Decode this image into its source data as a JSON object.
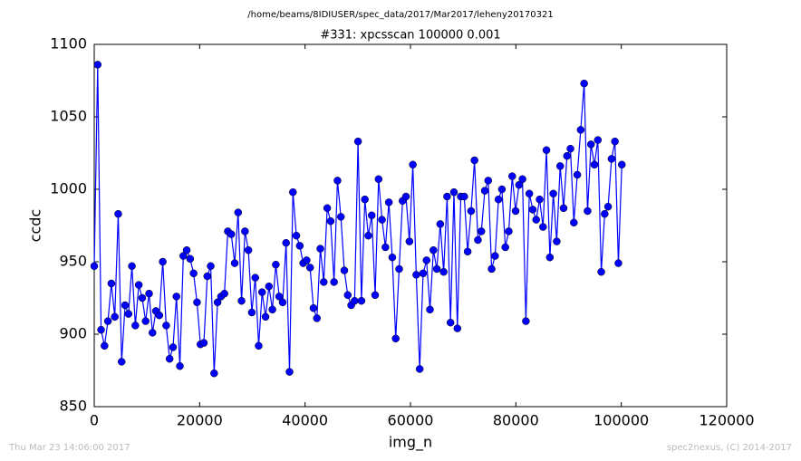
{
  "chart_data": {
    "type": "line",
    "suptitle": "/home/beams/8IDIUSER/spec_data/2017/Mar2017/leheny20170321",
    "title": "#331: xpcsscan 100000 0.001",
    "xlabel": "img_n",
    "ylabel": "ccdc",
    "footer_left": "Thu Mar 23 14:06:00 2017",
    "footer_right": "spec2nexus, (C) 2014-2017",
    "color": "#0000ff",
    "x": [
      0,
      650,
      1300,
      1950,
      2600,
      3250,
      3900,
      4550,
      5200,
      5850,
      6500,
      7150,
      7800,
      8450,
      9100,
      9750,
      10400,
      11050,
      11700,
      12350,
      13000,
      13650,
      14300,
      14950,
      15600,
      16250,
      16900,
      17550,
      18200,
      18850,
      19500,
      20150,
      20800,
      21450,
      22100,
      22750,
      23400,
      24050,
      24700,
      25350,
      26000,
      26650,
      27300,
      27950,
      28600,
      29250,
      29900,
      30550,
      31200,
      31850,
      32500,
      33150,
      33800,
      34450,
      35100,
      35750,
      36400,
      37050,
      37700,
      38350,
      39000,
      39650,
      40300,
      40950,
      41600,
      42250,
      42900,
      43550,
      44200,
      44850,
      45500,
      46150,
      46800,
      47450,
      48100,
      48750,
      49400,
      50050,
      50700,
      51350,
      52000,
      52650,
      53300,
      53950,
      54600,
      55250,
      55900,
      56550,
      57200,
      57850,
      58500,
      59150,
      59800,
      60450,
      61100,
      61750,
      62400,
      63050,
      63700,
      64350,
      65000,
      65650,
      66300,
      66950,
      67600,
      68250,
      68900,
      69550,
      70200,
      70850,
      71500,
      72150,
      72800,
      73450,
      74100,
      74750,
      75400,
      76050,
      76700,
      77350,
      78000,
      78650,
      79300,
      79950,
      80600,
      81250,
      81900,
      82550,
      83200,
      83850,
      84500,
      85150,
      85800,
      86450,
      87100,
      87750,
      88400,
      89050,
      89700,
      90350,
      91000,
      91650,
      92300,
      92950,
      93600,
      94250,
      94900,
      95550,
      96200,
      96850,
      97500,
      98150,
      98800,
      99450,
      100100
    ],
    "values": [
      947,
      1086,
      903,
      892,
      909,
      935,
      912,
      983,
      881,
      920,
      914,
      947,
      906,
      934,
      925,
      909,
      928,
      901,
      916,
      913,
      950,
      906,
      883,
      891,
      926,
      878,
      954,
      958,
      952,
      942,
      922,
      893,
      894,
      940,
      947,
      873,
      922,
      926,
      928,
      971,
      969,
      949,
      984,
      923,
      971,
      958,
      915,
      939,
      892,
      929,
      912,
      933,
      917,
      948,
      926,
      922,
      963,
      874,
      998,
      968,
      961,
      949,
      951,
      946,
      918,
      911,
      959,
      936,
      987,
      978,
      936,
      1006,
      981,
      944,
      927,
      920,
      923,
      1033,
      923,
      993,
      968,
      982,
      927,
      1007,
      979,
      960,
      991,
      953,
      897,
      945,
      992,
      995,
      964,
      1017,
      941,
      876,
      942,
      951,
      917,
      958,
      945,
      976,
      943,
      995,
      908,
      998,
      904,
      995,
      995,
      957,
      985,
      1020,
      965,
      971,
      999,
      1006,
      945,
      954,
      993,
      1000,
      960,
      971,
      1009,
      985,
      1003,
      1007,
      909,
      997,
      986,
      979,
      993,
      974,
      1027,
      953,
      997,
      964,
      1016,
      987,
      1023,
      1028,
      977,
      1010,
      1041,
      1073,
      985,
      1031,
      1017,
      1034,
      943,
      983,
      988,
      1021,
      1033,
      949,
      1017
    ],
    "xlim": [
      0,
      120000
    ],
    "ylim": [
      850,
      1100
    ],
    "xticks": [
      0,
      20000,
      40000,
      60000,
      80000,
      100000,
      120000
    ],
    "yticks": [
      850,
      900,
      950,
      1000,
      1050,
      1100
    ]
  }
}
